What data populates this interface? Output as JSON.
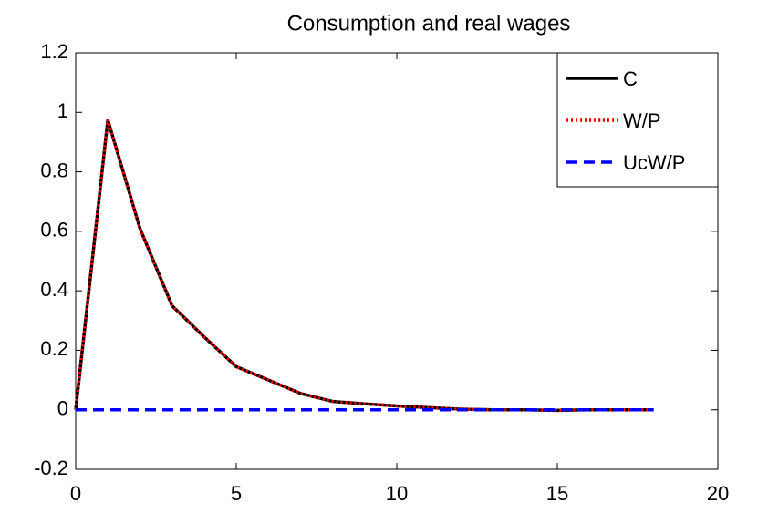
{
  "chart_data": {
    "type": "line",
    "title": "Consumption and real wages",
    "x": [
      0,
      1,
      2,
      3,
      4,
      5,
      6,
      7,
      8,
      9,
      10,
      11,
      12,
      13,
      14,
      15,
      16,
      17,
      18
    ],
    "series": [
      {
        "name": "C",
        "color": "#000000",
        "dash": "solid",
        "values": [
          0,
          0.975,
          0.61,
          0.35,
          0.245,
          0.145,
          0.1,
          0.055,
          0.028,
          0.02,
          0.013,
          0.007,
          0.002,
          0,
          0,
          -0.002,
          0,
          0,
          0
        ]
      },
      {
        "name": "W/P",
        "color": "#ff0000",
        "dash": "dotted",
        "values": [
          0,
          0.975,
          0.61,
          0.35,
          0.245,
          0.145,
          0.1,
          0.055,
          0.028,
          0.02,
          0.013,
          0.007,
          0.002,
          0,
          0,
          -0.002,
          0,
          0,
          0
        ]
      },
      {
        "name": "UcW/P",
        "color": "#0000ff",
        "dash": "dashed",
        "values": [
          0,
          0,
          0,
          0,
          0,
          0,
          0,
          0,
          0,
          0,
          0,
          0,
          0,
          0,
          0,
          0,
          0,
          0,
          0
        ]
      }
    ],
    "xlim": [
      0,
      20
    ],
    "xticks": [
      0,
      5,
      10,
      15,
      20
    ],
    "ylim": [
      -0.2,
      1.2
    ],
    "yticks": [
      -0.2,
      0,
      0.2,
      0.4,
      0.6,
      0.8,
      1,
      1.2
    ],
    "legend": "top-right"
  }
}
